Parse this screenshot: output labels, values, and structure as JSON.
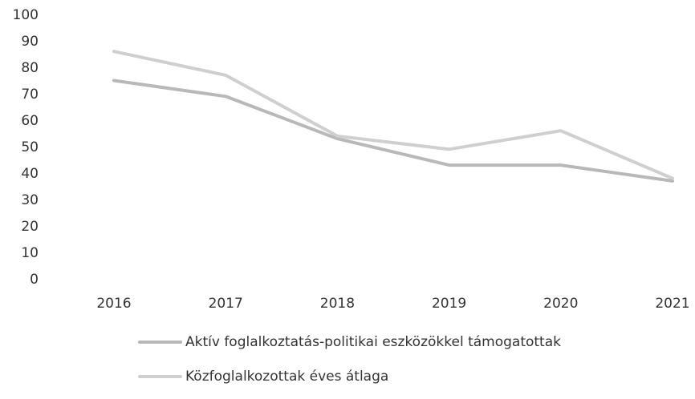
{
  "chart_data": {
    "type": "line",
    "title": "",
    "xlabel": "",
    "ylabel": "",
    "categories": [
      "2016",
      "2017",
      "2018",
      "2019",
      "2020",
      "2021"
    ],
    "ylim": [
      0,
      100
    ],
    "yticks": [
      "0",
      "10",
      "20",
      "30",
      "40",
      "50",
      "60",
      "70",
      "80",
      "90",
      "100"
    ],
    "grid": false,
    "legend_position": "bottom",
    "series": [
      {
        "name": "Aktív foglalkoztatás-politikai eszközökkel támogatottak",
        "values": [
          75,
          69,
          53,
          43,
          43,
          37
        ],
        "color": "#b8b8b8"
      },
      {
        "name": "Közfoglalkozottak éves átlaga",
        "values": [
          86,
          77,
          54,
          49,
          56,
          38
        ],
        "color": "#cfcfcf"
      }
    ]
  }
}
